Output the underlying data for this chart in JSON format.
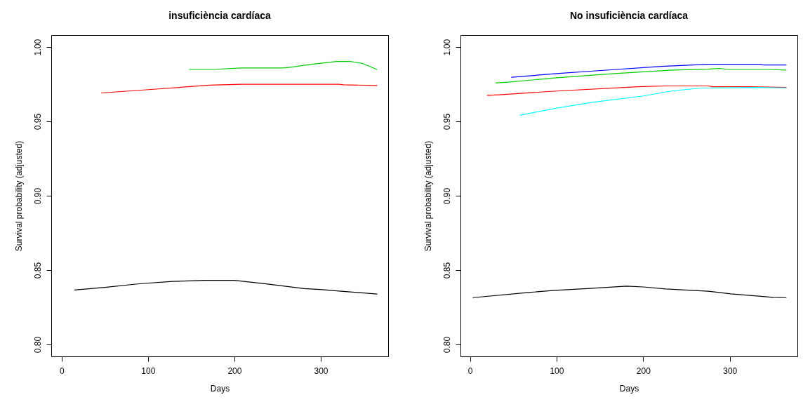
{
  "chart_data": [
    {
      "type": "line",
      "title": "insuficiència cardíaca",
      "xlabel": "Days",
      "ylabel": "Survival probability (adjusted)",
      "xlim": [
        -12,
        378
      ],
      "ylim": [
        0.792,
        1.008
      ],
      "xticks": [
        0,
        100,
        200,
        300
      ],
      "yticks": [
        {
          "value": 0.8,
          "label": "0.80"
        },
        {
          "value": 0.85,
          "label": "0.85"
        },
        {
          "value": 0.9,
          "label": "0.90"
        },
        {
          "value": 0.95,
          "label": "0.95"
        },
        {
          "value": 1.0,
          "label": "1.00"
        }
      ],
      "grid": false,
      "legend": false,
      "line_style": "solid",
      "series": [
        {
          "color": "#000000",
          "x": [
            15,
            50,
            90,
            128,
            165,
            200,
            235,
            281,
            299,
            321,
            342,
            365
          ],
          "values": [
            0.8366,
            0.8384,
            0.8408,
            0.8424,
            0.8431,
            0.8431,
            0.8409,
            0.8376,
            0.837,
            0.8359,
            0.835,
            0.8339
          ]
        },
        {
          "color": "#ff0000",
          "x": [
            46,
            112,
            171,
            208,
            321,
            326,
            365
          ],
          "values": [
            0.9691,
            0.9718,
            0.9743,
            0.9749,
            0.9749,
            0.9746,
            0.9741
          ]
        },
        {
          "color": "#00cd00",
          "x": [
            148,
            175,
            208,
            256,
            267,
            286,
            318,
            334,
            348,
            365
          ],
          "values": [
            0.9849,
            0.9849,
            0.9859,
            0.9859,
            0.9865,
            0.9881,
            0.9903,
            0.9903,
            0.989,
            0.9849
          ]
        }
      ]
    },
    {
      "type": "line",
      "title": "No insuficiència cardíaca",
      "xlabel": "Days",
      "ylabel": "Survival probability (adjusted)",
      "xlim": [
        -11,
        378
      ],
      "ylim": [
        0.792,
        1.008
      ],
      "xticks": [
        0,
        100,
        200,
        300
      ],
      "yticks": [
        {
          "value": 0.8,
          "label": "0.80"
        },
        {
          "value": 0.85,
          "label": "0.85"
        },
        {
          "value": 0.9,
          "label": "0.90"
        },
        {
          "value": 0.95,
          "label": "0.95"
        },
        {
          "value": 1.0,
          "label": "1.00"
        }
      ],
      "grid": false,
      "legend": false,
      "line_style": "solid",
      "series": [
        {
          "color": "#000000",
          "x": [
            3.5,
            68,
            98,
            135,
            181,
            200,
            226,
            275,
            301,
            331,
            350,
            365
          ],
          "values": [
            0.8315,
            0.835,
            0.8364,
            0.8376,
            0.8392,
            0.8387,
            0.8373,
            0.8358,
            0.834,
            0.8326,
            0.8317,
            0.8315
          ]
        },
        {
          "color": "#0000ff",
          "x": [
            48,
            100,
            154,
            221,
            275,
            334,
            339,
            365
          ],
          "values": [
            0.9796,
            0.9821,
            0.9843,
            0.987,
            0.9884,
            0.9884,
            0.9879,
            0.9879
          ]
        },
        {
          "color": "#00cd00",
          "x": [
            30,
            44,
            100,
            167,
            234,
            275,
            288,
            299,
            345,
            365
          ],
          "values": [
            0.9759,
            0.9763,
            0.9793,
            0.9821,
            0.9845,
            0.9851,
            0.9856,
            0.9849,
            0.9849,
            0.9845
          ]
        },
        {
          "color": "#ff0000",
          "x": [
            20,
            34,
            100,
            194,
            226,
            275,
            280,
            323,
            365
          ],
          "values": [
            0.9675,
            0.9679,
            0.9704,
            0.9733,
            0.9738,
            0.9738,
            0.9733,
            0.9733,
            0.9728
          ]
        },
        {
          "color": "#00ffff",
          "x": [
            58,
            100,
            141,
            200,
            234,
            267,
            328,
            365
          ],
          "values": [
            0.9542,
            0.9589,
            0.9628,
            0.9671,
            0.9705,
            0.9724,
            0.9728,
            0.9725
          ]
        }
      ]
    }
  ]
}
